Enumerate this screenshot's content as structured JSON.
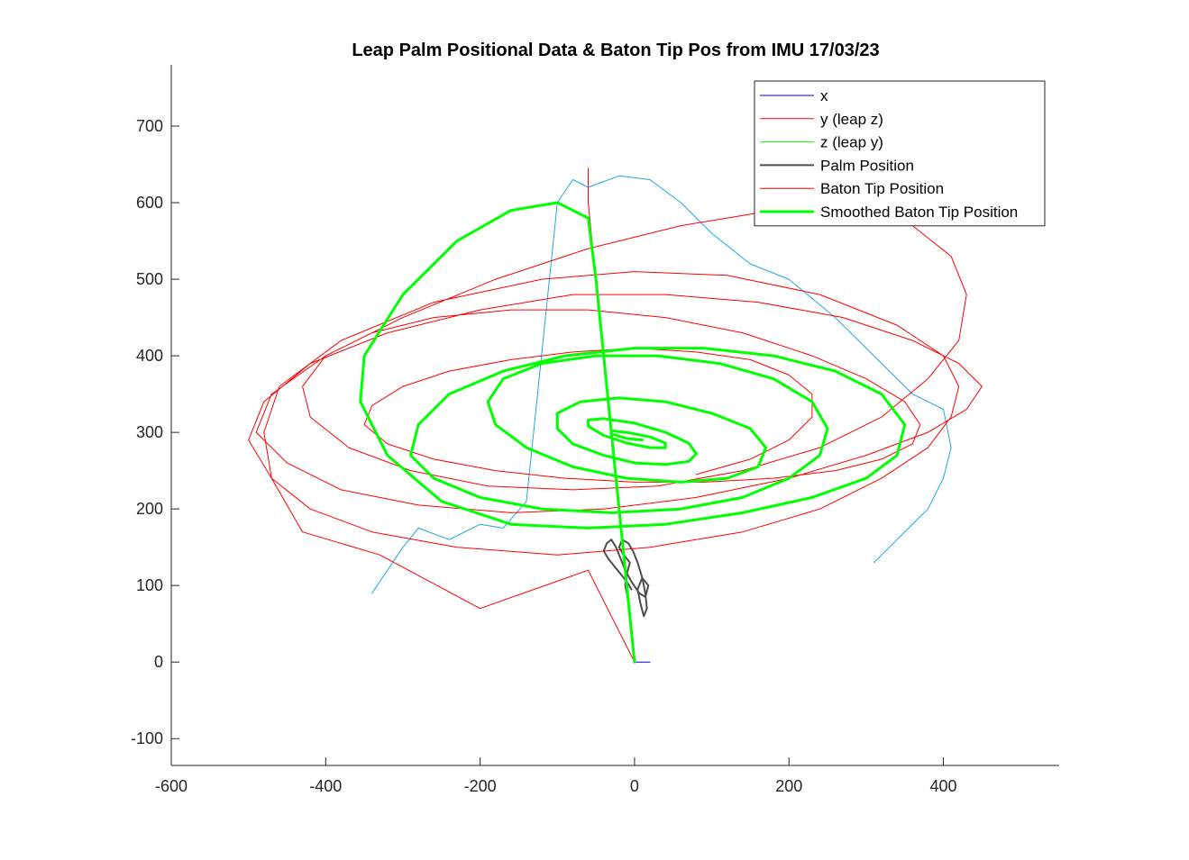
{
  "chart_data": {
    "type": "line",
    "title": "Leap Palm Positional Data & Baton Tip Pos from IMU 17/03/23",
    "xlabel": "",
    "ylabel": "",
    "xlim": [
      -600,
      550
    ],
    "ylim": [
      -135,
      780
    ],
    "xticks": [
      -600,
      -400,
      -200,
      0,
      200,
      400
    ],
    "yticks": [
      -100,
      0,
      100,
      200,
      300,
      400,
      500,
      600,
      700
    ],
    "grid": false,
    "legend": {
      "position": "top-right",
      "entries": [
        {
          "name": "x",
          "color": "#0000ff",
          "width": 1
        },
        {
          "name": "y (leap z)",
          "color": "#ff0000",
          "width": 1
        },
        {
          "name": "z (leap y)",
          "color": "#00ff00",
          "width": 1
        },
        {
          "name": "Palm Position",
          "color": "#4d4d4d",
          "width": 2
        },
        {
          "name": "Baton Tip Position",
          "color": "#ff0000",
          "width": 1
        },
        {
          "name": "Smoothed Baton Tip Position",
          "color": "#00ff00",
          "width": 3
        }
      ]
    },
    "series": [
      {
        "name": "x",
        "color": "#0000ff",
        "width": 1,
        "x": [
          0,
          20
        ],
        "y": [
          0,
          0
        ]
      },
      {
        "name": "y (leap z)",
        "color": "#ff0000",
        "width": 1,
        "x": [
          0,
          -2
        ],
        "y": [
          0,
          30
        ]
      },
      {
        "name": "z (leap y)",
        "color": "#00ff00",
        "width": 1,
        "x": [
          0,
          -3
        ],
        "y": [
          0,
          30
        ]
      },
      {
        "name": "",
        "color": "#1fa7e1",
        "width": 1,
        "x": [
          -340,
          -300,
          -280,
          -240,
          -200,
          -170,
          -140,
          -100,
          -80,
          -60,
          -20,
          20,
          60,
          100,
          150,
          200,
          260,
          310,
          360,
          400,
          410,
          400,
          380,
          340,
          320,
          310
        ],
        "y": [
          90,
          150,
          175,
          160,
          180,
          175,
          210,
          600,
          630,
          620,
          635,
          630,
          600,
          560,
          520,
          500,
          450,
          400,
          350,
          330,
          280,
          240,
          200,
          160,
          140,
          130
        ]
      },
      {
        "name": "Palm Position",
        "color": "#4d4d4d",
        "width": 2,
        "x": [
          0,
          -4,
          -8,
          -12,
          -10,
          -6,
          -14,
          -20,
          -16,
          -8,
          -2,
          4,
          10,
          14,
          16,
          12,
          8,
          4,
          10,
          18,
          14,
          6,
          -4,
          -12,
          -18,
          -24,
          -30,
          -36,
          -40,
          -34,
          -26,
          -18,
          -10,
          -4
        ],
        "y": [
          0,
          40,
          80,
          100,
          115,
          130,
          140,
          150,
          160,
          155,
          145,
          130,
          110,
          90,
          70,
          60,
          75,
          95,
          110,
          100,
          85,
          90,
          105,
          120,
          135,
          150,
          160,
          155,
          145,
          135,
          125,
          115,
          105,
          95
        ]
      },
      {
        "name": "Baton Tip Position",
        "color": "#ff0000",
        "width": 1,
        "x": [
          0,
          -60,
          -200,
          -330,
          -430,
          -470,
          -480,
          -460,
          -380,
          -260,
          -120,
          0,
          120,
          240,
          340,
          400,
          420,
          410,
          380,
          320,
          240,
          140,
          20,
          -100,
          -230,
          -340,
          -420,
          -470,
          -500,
          -480,
          -420,
          -320,
          -200,
          -80,
          40,
          160,
          270,
          360,
          420,
          450,
          430,
          380,
          300,
          200,
          80,
          -40,
          -160,
          -280,
          -380,
          -450,
          -490,
          -470,
          -400,
          -300,
          -180,
          -60,
          60,
          180,
          280,
          360,
          410,
          430,
          420,
          380,
          320,
          240,
          140,
          30,
          -80,
          -190,
          -290,
          -370,
          -420,
          -430,
          -400,
          -340,
          -260,
          -160,
          -60,
          40,
          140,
          230,
          300,
          350,
          370,
          360,
          320,
          260,
          180,
          90,
          0,
          -90,
          -180,
          -260,
          -320,
          -350,
          -340,
          -300,
          -240,
          -160,
          -80,
          0,
          80,
          150,
          200,
          230,
          230,
          200,
          150,
          80
        ],
        "y": [
          0,
          120,
          70,
          140,
          170,
          240,
          300,
          360,
          420,
          470,
          500,
          510,
          505,
          480,
          440,
          400,
          360,
          320,
          280,
          240,
          200,
          170,
          150,
          140,
          150,
          170,
          200,
          240,
          290,
          340,
          390,
          430,
          460,
          480,
          480,
          470,
          450,
          420,
          390,
          360,
          330,
          300,
          270,
          240,
          215,
          200,
          195,
          205,
          225,
          260,
          300,
          350,
          400,
          450,
          500,
          540,
          570,
          590,
          590,
          570,
          530,
          480,
          420,
          370,
          320,
          280,
          250,
          230,
          225,
          230,
          250,
          280,
          320,
          360,
          400,
          430,
          450,
          460,
          460,
          450,
          430,
          400,
          370,
          340,
          310,
          285,
          265,
          250,
          240,
          235,
          235,
          240,
          250,
          265,
          285,
          310,
          335,
          360,
          380,
          395,
          405,
          410,
          405,
          395,
          375,
          350,
          320,
          290,
          265,
          245
        ]
      },
      {
        "name": "Baton Tip Position",
        "color": "#ff0000",
        "width": 1,
        "x": [
          -60,
          -60,
          -58,
          -56,
          -54,
          -52,
          -50,
          -48,
          -46,
          -44,
          -42,
          -40,
          -38,
          -36,
          -34,
          -32,
          -30,
          -28,
          -26,
          -24,
          -22,
          -20,
          -18,
          -16,
          -14,
          -12,
          -10,
          -8,
          -6,
          -4,
          -2,
          0
        ],
        "y": [
          645,
          600,
          580,
          560,
          540,
          520,
          500,
          480,
          460,
          440,
          420,
          400,
          380,
          360,
          340,
          320,
          300,
          280,
          260,
          240,
          220,
          200,
          180,
          160,
          140,
          120,
          100,
          80,
          60,
          40,
          20,
          0
        ]
      },
      {
        "name": "Smoothed Baton Tip Position",
        "color": "#00ff00",
        "width": 3,
        "x": [
          0,
          -10,
          -20,
          -30,
          -40,
          -50,
          -60,
          -100,
          -160,
          -230,
          -300,
          -350,
          -355,
          -320,
          -250,
          -160,
          -60,
          40,
          140,
          230,
          300,
          340,
          350,
          320,
          260,
          180,
          90,
          0,
          -90,
          -170,
          -240,
          -280,
          -290,
          -260,
          -200,
          -120,
          -30,
          60,
          140,
          200,
          240,
          250,
          230,
          180,
          110,
          30,
          -50,
          -120,
          -170,
          -190,
          -180,
          -140,
          -80,
          -10,
          60,
          120,
          160,
          170,
          150,
          100,
          40,
          -20,
          -70,
          -100,
          -100,
          -80,
          -40,
          0,
          40,
          70,
          80,
          70,
          40,
          0,
          -40,
          -60,
          -60,
          -40,
          -10,
          20,
          40,
          40,
          20,
          -10,
          -30,
          -30,
          -10,
          10
        ],
        "y": [
          0,
          100,
          200,
          300,
          400,
          500,
          580,
          600,
          590,
          550,
          480,
          400,
          340,
          270,
          210,
          180,
          175,
          180,
          195,
          215,
          240,
          270,
          310,
          350,
          380,
          400,
          410,
          410,
          400,
          380,
          350,
          310,
          270,
          240,
          215,
          200,
          195,
          200,
          215,
          240,
          270,
          305,
          340,
          370,
          390,
          400,
          400,
          390,
          370,
          340,
          310,
          280,
          255,
          240,
          235,
          240,
          255,
          280,
          305,
          325,
          340,
          345,
          340,
          325,
          305,
          285,
          270,
          260,
          258,
          262,
          272,
          286,
          300,
          312,
          318,
          316,
          308,
          296,
          286,
          280,
          280,
          286,
          294,
          300,
          302,
          298,
          292,
          290
        ]
      }
    ]
  }
}
